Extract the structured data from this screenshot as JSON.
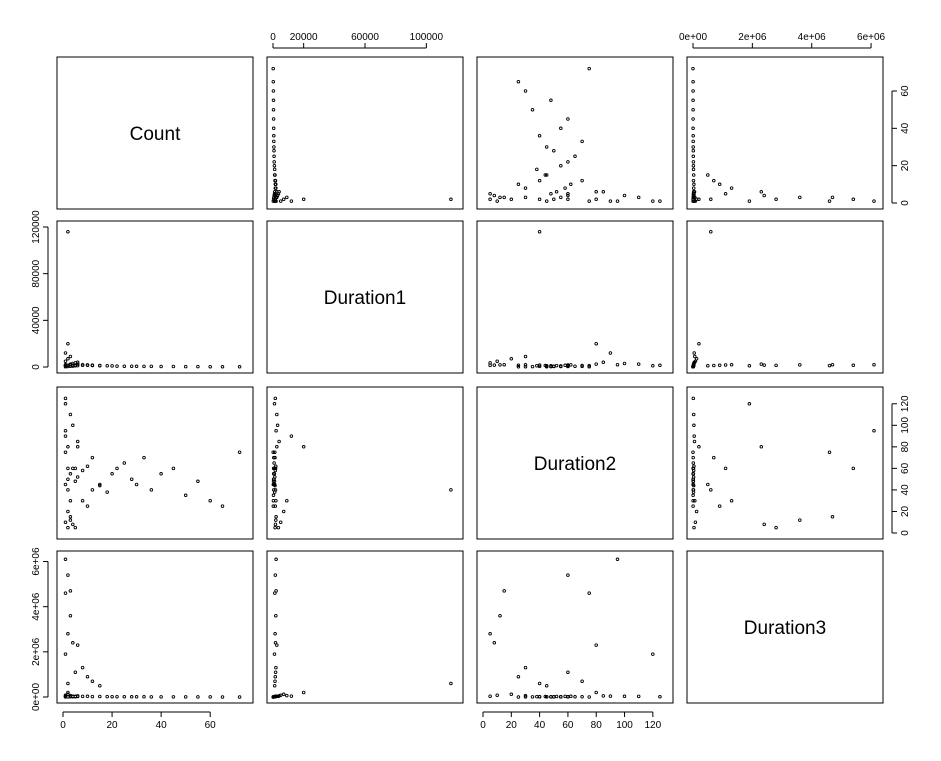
{
  "chart_data": {
    "type": "scatter",
    "title": "",
    "variables": [
      "Count",
      "Duration1",
      "Duration2",
      "Duration3"
    ],
    "axes": {
      "Count": {
        "range": [
          0,
          75
        ],
        "ticks": [
          0,
          20,
          40,
          60
        ],
        "tick_labels": [
          "0",
          "20",
          "40",
          "60"
        ]
      },
      "Duration1": {
        "range": [
          0,
          120000
        ],
        "ticks_top": [
          0,
          20000,
          60000,
          100000
        ],
        "tick_labels_top": [
          "0",
          "20000",
          "60000",
          "100000"
        ],
        "ticks_left": [
          0,
          40000,
          80000,
          120000
        ],
        "tick_labels_left": [
          "0",
          "40000",
          "80000",
          "120000"
        ]
      },
      "Duration2": {
        "range": [
          0,
          130
        ],
        "ticks_bottom": [
          0,
          20,
          40,
          60,
          80,
          100,
          120
        ],
        "tick_labels_bottom": [
          "0",
          "20",
          "40",
          "60",
          "80",
          "100",
          "120"
        ],
        "ticks_right": [
          0,
          20,
          40,
          60,
          80,
          100,
          120
        ],
        "tick_labels_right": [
          "0",
          "20",
          "40",
          "60",
          "80",
          "100",
          "120"
        ]
      },
      "Duration3": {
        "range": [
          0,
          6200000
        ],
        "ticks": [
          0,
          2000000,
          4000000,
          6000000
        ],
        "tick_labels": [
          "0e+00",
          "2e+06",
          "4e+06",
          "6e+06"
        ]
      }
    },
    "points": [
      [
        1,
        200,
        45,
        3000
      ],
      [
        2,
        400,
        50,
        5000
      ],
      [
        3,
        600,
        55,
        8000
      ],
      [
        4,
        800,
        60,
        12000
      ],
      [
        5,
        1000,
        48,
        15000
      ],
      [
        6,
        1200,
        52,
        20000
      ],
      [
        8,
        1500,
        58,
        25000
      ],
      [
        10,
        1800,
        62,
        30000
      ],
      [
        12,
        1600,
        40,
        18000
      ],
      [
        15,
        1300,
        44,
        22000
      ],
      [
        18,
        1100,
        38,
        16000
      ],
      [
        20,
        900,
        55,
        14000
      ],
      [
        22,
        800,
        60,
        12000
      ],
      [
        25,
        700,
        65,
        10000
      ],
      [
        28,
        650,
        50,
        9000
      ],
      [
        30,
        600,
        45,
        8000
      ],
      [
        33,
        550,
        70,
        7000
      ],
      [
        36,
        500,
        40,
        6000
      ],
      [
        40,
        450,
        55,
        5000
      ],
      [
        45,
        400,
        60,
        4000
      ],
      [
        50,
        350,
        35,
        3500
      ],
      [
        55,
        300,
        48,
        3000
      ],
      [
        60,
        250,
        30,
        2500
      ],
      [
        65,
        200,
        25,
        2000
      ],
      [
        72,
        150,
        75,
        1500
      ],
      [
        1,
        5000,
        10,
        80000
      ],
      [
        2,
        7000,
        20,
        120000
      ],
      [
        3,
        9000,
        30,
        60000
      ],
      [
        1,
        12000,
        90,
        40000
      ],
      [
        4,
        3000,
        100,
        30000
      ],
      [
        2,
        20000,
        80,
        200000
      ],
      [
        6,
        4000,
        85,
        50000
      ],
      [
        3,
        2500,
        110,
        25000
      ],
      [
        1,
        1500,
        125,
        10000
      ],
      [
        5,
        3500,
        5,
        35000
      ],
      [
        2,
        116000,
        40,
        600000
      ],
      [
        1,
        2000,
        95,
        6100000
      ],
      [
        2,
        1500,
        60,
        5400000
      ],
      [
        3,
        2000,
        15,
        4700000
      ],
      [
        1,
        1200,
        75,
        4600000
      ],
      [
        3,
        1800,
        12,
        3600000
      ],
      [
        2,
        1400,
        5,
        2800000
      ],
      [
        4,
        1600,
        8,
        2400000
      ],
      [
        1,
        1000,
        120,
        1900000
      ],
      [
        6,
        2500,
        80,
        2300000
      ],
      [
        8,
        1900,
        30,
        1300000
      ],
      [
        5,
        1700,
        60,
        1100000
      ],
      [
        10,
        1500,
        25,
        900000
      ],
      [
        12,
        1300,
        70,
        700000
      ],
      [
        15,
        1100,
        45,
        500000
      ]
    ]
  }
}
